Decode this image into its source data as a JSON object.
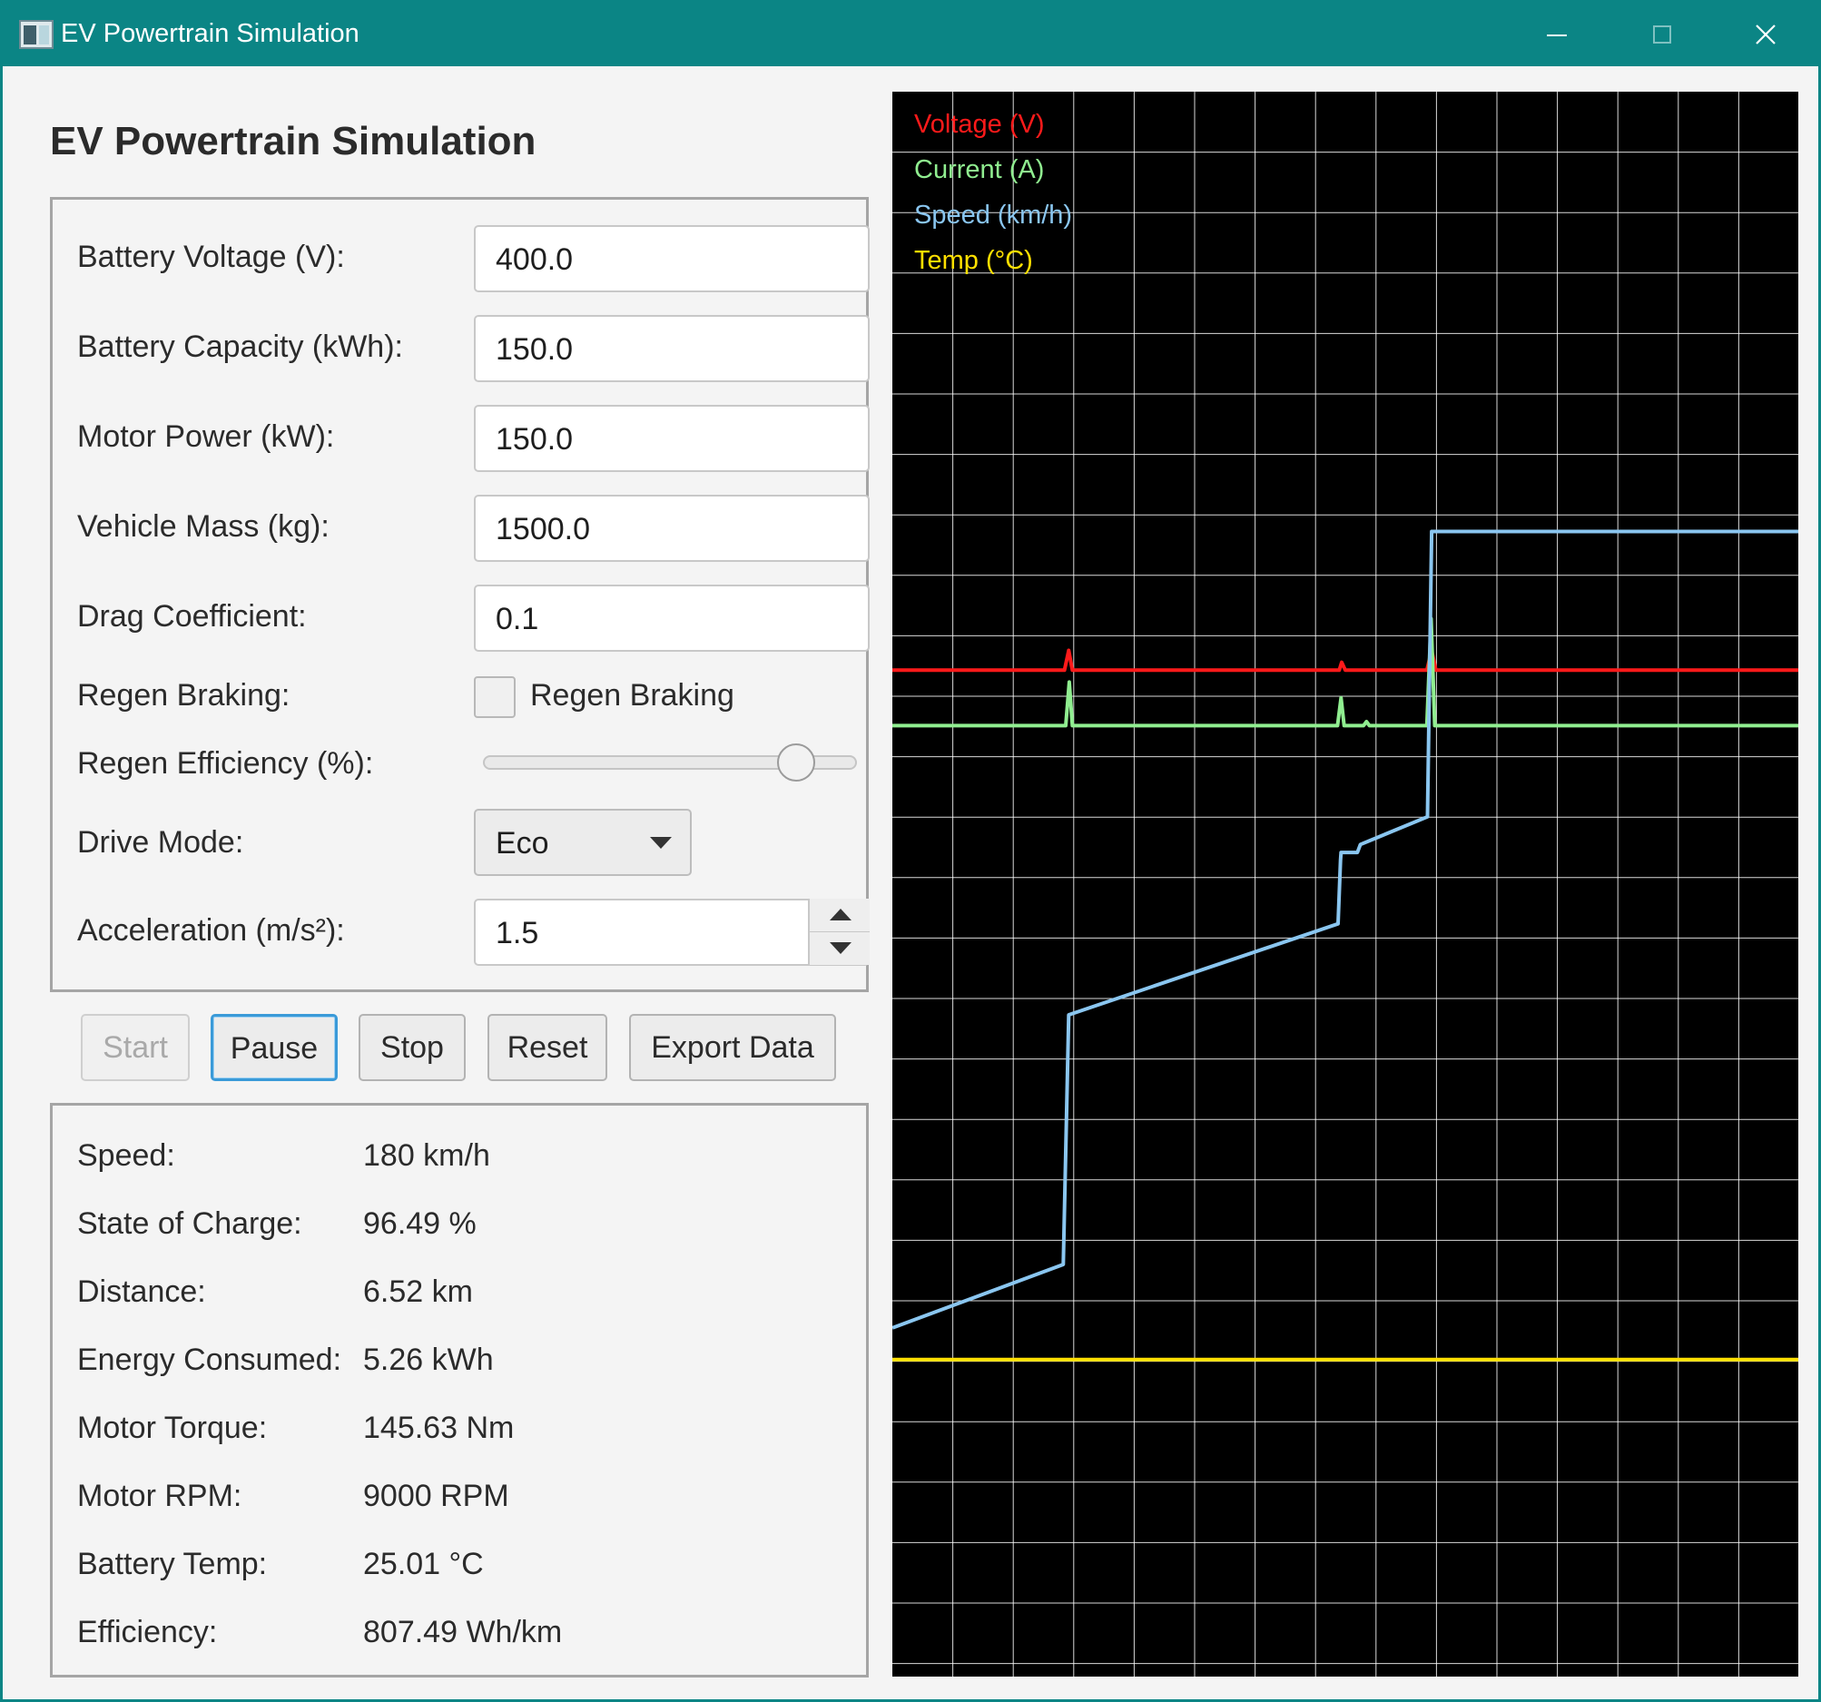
{
  "window": {
    "title": "EV Powertrain Simulation",
    "buttons": {
      "minimize": "minimize",
      "maximize": "maximize",
      "close": "close"
    }
  },
  "page_title": "EV Powertrain Simulation",
  "params": {
    "battery_voltage": {
      "label": "Battery Voltage (V):",
      "value": "400.0"
    },
    "battery_capacity": {
      "label": "Battery Capacity (kWh):",
      "value": "150.0"
    },
    "motor_power": {
      "label": "Motor Power (kW):",
      "value": "150.0"
    },
    "vehicle_mass": {
      "label": "Vehicle Mass (kg):",
      "value": "1500.0"
    },
    "drag_coefficient": {
      "label": "Drag Coefficient:",
      "value": "0.1"
    },
    "regen_braking": {
      "label": "Regen Braking:",
      "checkbox_label": "Regen Braking",
      "checked": false
    },
    "regen_efficiency": {
      "label": "Regen Efficiency (%):",
      "value_fraction": 0.87
    },
    "drive_mode": {
      "label": "Drive Mode:",
      "value": "Eco"
    },
    "acceleration": {
      "label": "Acceleration (m/s²):",
      "value": "1.5"
    }
  },
  "buttons": {
    "start": "Start",
    "pause": "Pause",
    "stop": "Stop",
    "reset": "Reset",
    "export": "Export Data"
  },
  "readouts": [
    {
      "label": "Speed:",
      "value": "180 km/h"
    },
    {
      "label": "State of Charge:",
      "value": "96.49 %"
    },
    {
      "label": "Distance:",
      "value": "6.52 km"
    },
    {
      "label": "Energy Consumed:",
      "value": "5.26 kWh"
    },
    {
      "label": "Motor Torque:",
      "value": "145.63 Nm"
    },
    {
      "label": "Motor RPM:",
      "value": "9000 RPM"
    },
    {
      "label": "Battery Temp:",
      "value": "25.01 °C"
    },
    {
      "label": "Efficiency:",
      "value": "807.49 Wh/km"
    }
  ],
  "chart_data": {
    "type": "line",
    "title": "",
    "grid": true,
    "background": "#000000",
    "grid_color": "#ffffff",
    "xlim": [
      0,
      150
    ],
    "ylim": [
      0,
      400
    ],
    "legend_placement": "top-left",
    "series": [
      {
        "name": "Voltage (V)",
        "color": "#ff1a1a",
        "x": [
          0,
          28.5,
          29.2,
          29.8,
          74,
          74.4,
          75,
          76,
          77,
          88.5,
          89.3,
          90,
          150
        ],
        "y": [
          254,
          254,
          259,
          254,
          254,
          256,
          254,
          254,
          254,
          254,
          259,
          254,
          254
        ]
      },
      {
        "name": "Current (A)",
        "color": "#90ee90",
        "x": [
          0,
          28.7,
          29.3,
          29.8,
          73.7,
          74.3,
          74.8,
          78,
          78.5,
          79,
          88.5,
          89.2,
          89.8,
          150
        ],
        "y": [
          240,
          240,
          251,
          240,
          240,
          247,
          240,
          240,
          241,
          240,
          240,
          267,
          240,
          240
        ]
      },
      {
        "name": "Speed (km/h)",
        "color": "#8ac6f0",
        "x": [
          0,
          28.3,
          29.2,
          73.8,
          74.2,
          74.3,
          77,
          77.5,
          88.6,
          89.3,
          150
        ],
        "y": [
          88,
          104,
          167,
          190,
          206,
          208,
          208,
          210,
          217,
          289,
          289
        ]
      },
      {
        "name": "Temp (°C)",
        "color": "#ffe000",
        "x": [
          0,
          150
        ],
        "y": [
          80,
          80
        ]
      }
    ]
  }
}
